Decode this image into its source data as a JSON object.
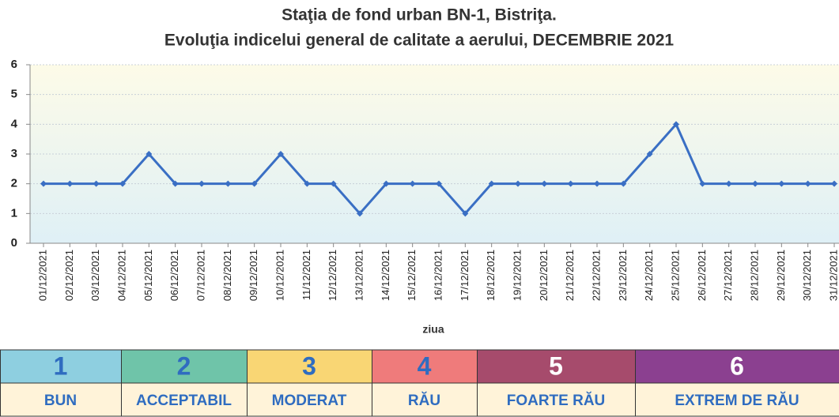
{
  "chart_data": {
    "type": "line",
    "title": "Staţia de fond urban BN-1, Bistriţa.",
    "subtitle": "Evoluţia indicelui general de calitate a aerului, DECEMBRIE 2021",
    "x_label": "ziua",
    "categories": [
      "01/12/2021",
      "02/12/2021",
      "03/12/2021",
      "04/12/2021",
      "05/12/2021",
      "06/12/2021",
      "07/12/2021",
      "08/12/2021",
      "09/12/2021",
      "10/12/2021",
      "11/12/2021",
      "12/12/2021",
      "13/12/2021",
      "14/12/2021",
      "15/12/2021",
      "16/12/2021",
      "17/12/2021",
      "18/12/2021",
      "19/12/2021",
      "20/12/2021",
      "21/12/2021",
      "22/12/2021",
      "23/12/2021",
      "24/12/2021",
      "25/12/2021",
      "26/12/2021",
      "27/12/2021",
      "28/12/2021",
      "29/12/2021",
      "30/12/2021",
      "31/12/2021"
    ],
    "values": [
      2,
      2,
      2,
      2,
      3,
      2,
      2,
      2,
      2,
      3,
      2,
      2,
      1,
      2,
      2,
      2,
      1,
      2,
      2,
      2,
      2,
      2,
      2,
      3,
      4,
      2,
      2,
      2,
      2,
      2,
      2
    ],
    "color": "#3a6fc4",
    "ylim": [
      0,
      6
    ],
    "yticks": [
      0,
      1,
      2,
      3,
      4,
      5,
      6
    ],
    "grid": true,
    "scale": [
      {
        "value": 1,
        "label": "BUN",
        "color": "#8ecfe0"
      },
      {
        "value": 2,
        "label": "ACCEPTABIL",
        "color": "#6fc4a9"
      },
      {
        "value": 3,
        "label": "MODERAT",
        "color": "#f9d674"
      },
      {
        "value": 4,
        "label": "RĂU",
        "color": "#ef7b7b"
      },
      {
        "value": 5,
        "label": "FOARTE RĂU",
        "color": "#a64b6c"
      },
      {
        "value": 6,
        "label": "EXTREM DE RĂU",
        "color": "#8b4090"
      }
    ]
  }
}
